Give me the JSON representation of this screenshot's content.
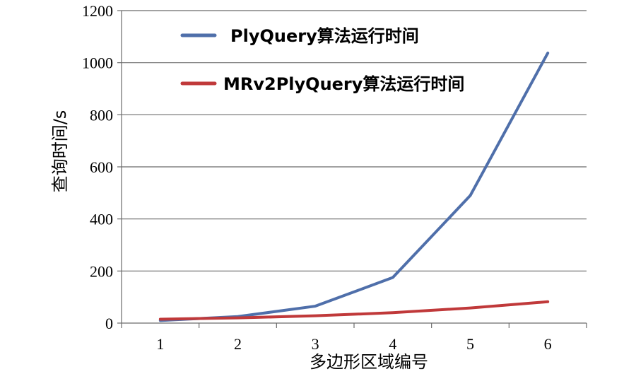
{
  "chart_data": {
    "type": "line",
    "title": "",
    "xlabel": "多边形区域编号",
    "ylabel": "查询时间/s",
    "x": [
      1,
      2,
      3,
      4,
      5,
      6
    ],
    "ylim": [
      0,
      1200
    ],
    "yticks": [
      0,
      200,
      400,
      600,
      800,
      1000,
      1200
    ],
    "grid": "horizontal",
    "legend_position": "top-left",
    "series": [
      {
        "name": "PlyQuery算法运行时间",
        "color": "#4F6FAA",
        "values": [
          10,
          25,
          65,
          175,
          490,
          1037
        ]
      },
      {
        "name": "MRv2PlyQuery算法运行时间",
        "color": "#C0393A",
        "values": [
          15,
          20,
          28,
          40,
          58,
          82
        ]
      }
    ]
  }
}
